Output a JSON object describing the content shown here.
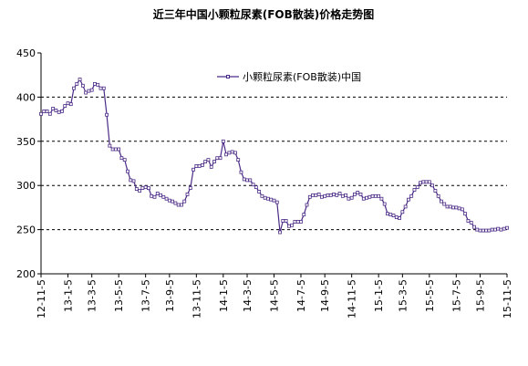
{
  "chart_data": {
    "type": "line",
    "title": "近三年中国小颗粒尿素(FOB散装)价格走势图",
    "categories": [
      "12-11-5",
      null,
      null,
      null,
      null,
      null,
      null,
      null,
      null,
      "13-1-5",
      null,
      null,
      null,
      null,
      null,
      null,
      null,
      "13-3-5",
      null,
      null,
      null,
      null,
      null,
      null,
      null,
      null,
      "13-5-5",
      null,
      null,
      null,
      null,
      null,
      null,
      null,
      null,
      "13-7-5",
      null,
      null,
      null,
      null,
      null,
      null,
      null,
      "13-9-5",
      null,
      null,
      null,
      null,
      null,
      null,
      null,
      null,
      "13-11-5",
      null,
      null,
      null,
      null,
      null,
      null,
      null,
      null,
      "14-1-5",
      null,
      null,
      null,
      null,
      null,
      null,
      null,
      "14-3-5",
      null,
      null,
      null,
      null,
      null,
      null,
      null,
      null,
      "14-5-5",
      null,
      null,
      null,
      null,
      null,
      null,
      null,
      null,
      "14-7-5",
      null,
      null,
      null,
      null,
      null,
      null,
      null,
      "14-9-5",
      null,
      null,
      null,
      null,
      null,
      null,
      null,
      null,
      "14-11-5",
      null,
      null,
      null,
      null,
      null,
      null,
      null,
      null,
      "15-1-5",
      null,
      null,
      null,
      null,
      null,
      null,
      null,
      "15-3-5",
      null,
      null,
      null,
      null,
      null,
      null,
      null,
      null,
      "15-5-5",
      null,
      null,
      null,
      null,
      null,
      null,
      null,
      null,
      "15-7-5",
      null,
      null,
      null,
      null,
      null,
      null,
      null,
      "15-9-5",
      null,
      null,
      null,
      null,
      null,
      null,
      null,
      null,
      "15-11-5"
    ],
    "series": [
      {
        "name": "小颗粒尿素(FOB散装)中国",
        "color": "#4b2a86",
        "values": [
          381,
          384,
          384,
          381,
          387,
          385,
          383,
          384,
          390,
          393,
          392,
          410,
          415,
          420,
          413,
          405,
          407,
          408,
          415,
          414,
          410,
          410,
          380,
          345,
          341,
          341,
          341,
          331,
          329,
          316,
          306,
          305,
          296,
          294,
          297,
          298,
          297,
          288,
          287,
          291,
          289,
          287,
          285,
          283,
          282,
          280,
          278,
          278,
          282,
          290,
          297,
          318,
          322,
          322,
          323,
          327,
          329,
          321,
          327,
          331,
          331,
          350,
          335,
          337,
          338,
          337,
          329,
          315,
          307,
          306,
          306,
          301,
          298,
          293,
          288,
          286,
          285,
          284,
          283,
          281,
          247,
          260,
          260,
          254,
          255,
          259,
          259,
          259,
          267,
          278,
          287,
          289,
          289,
          290,
          287,
          288,
          289,
          289,
          290,
          289,
          291,
          288,
          289,
          285,
          286,
          290,
          292,
          290,
          285,
          286,
          287,
          288,
          288,
          288,
          285,
          279,
          268,
          267,
          266,
          264,
          263,
          270,
          276,
          284,
          288,
          295,
          298,
          303,
          304,
          304,
          304,
          300,
          294,
          288,
          282,
          279,
          276,
          276,
          275,
          275,
          274,
          273,
          268,
          260,
          258,
          253,
          250,
          249,
          249,
          249,
          249,
          250,
          250,
          251,
          250,
          251,
          252
        ]
      }
    ],
    "ylim": [
      200,
      450
    ],
    "yticks": [
      200,
      250,
      300,
      350,
      400,
      450
    ],
    "grid": true
  }
}
